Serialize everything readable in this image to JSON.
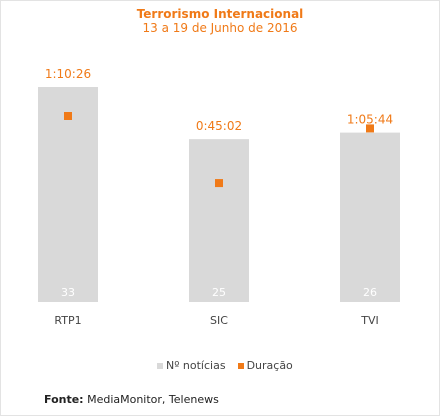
{
  "colors": {
    "bar": "#d9d9d9",
    "point": "#f07a18",
    "title": "#f07a18",
    "text": "#444444"
  },
  "chart_data": {
    "type": "bar",
    "title": "Terrorismo Internacional",
    "subtitle": "13 a 19 de Junho de 2016",
    "categories": [
      "RTP1",
      "SIC",
      "TVI"
    ],
    "series": [
      {
        "name": "Nº notícias",
        "values": [
          33,
          25,
          26
        ],
        "labels": [
          "33",
          "25",
          "26"
        ]
      },
      {
        "name": "Duração",
        "values": [
          4226,
          2702,
          3944
        ],
        "labels": [
          "1:10:26",
          "0:45:02",
          "1:05:44"
        ]
      }
    ],
    "grid": false,
    "legend_position": "bottom"
  },
  "legend": {
    "bars": "Nº notícias",
    "points": "Duração"
  },
  "source": {
    "label": "Fonte:",
    "text": " MediaMonitor, Telenews"
  }
}
